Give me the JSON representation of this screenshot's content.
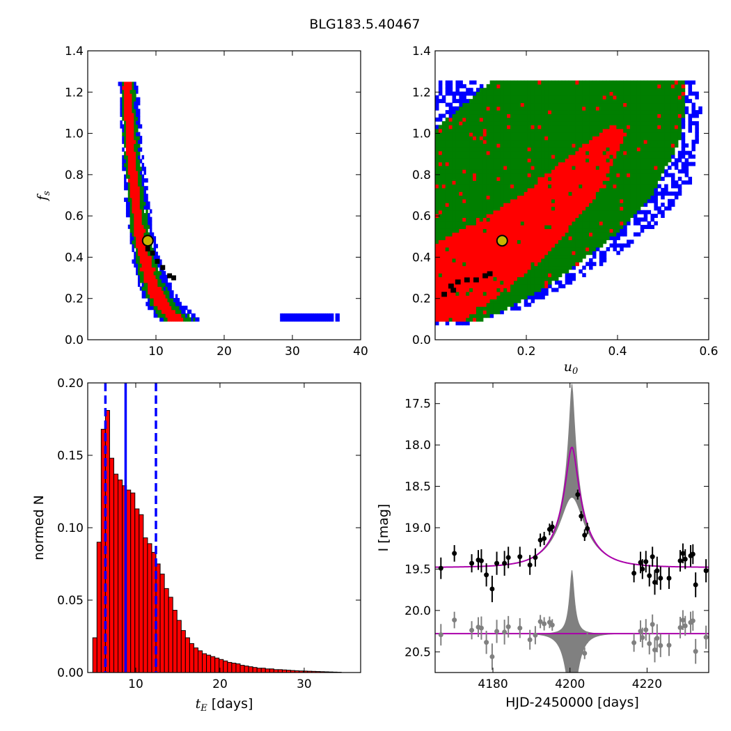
{
  "title": "BLG183.5.40467",
  "colors": {
    "chain_blue": "#0000ff",
    "chain_green": "#007f00",
    "chain_red": "#ff0000",
    "chain_black": "#000000",
    "best_marker_fill": "#c8b400",
    "hist_fill": "#ff0000",
    "vline_blue": "#0000ff",
    "model_magenta": "#aa00aa",
    "band_gray": "#808080",
    "data_black": "#000000",
    "resid_gray": "#808080"
  },
  "chart_data": [
    {
      "id": "panel_te_fs",
      "type": "heatmap",
      "title": "",
      "xlabel": "",
      "ylabel_symbol": "f",
      "ylabel_sub": "s",
      "xlim": [
        0,
        40
      ],
      "ylim": [
        0,
        1.4
      ],
      "xticks": [
        "10",
        "20",
        "30",
        "40"
      ],
      "yticks": [
        "0.0",
        "0.2",
        "0.4",
        "0.6",
        "0.8",
        "1.0",
        "1.2",
        "1.4"
      ],
      "levels": [
        "blue",
        "green",
        "red",
        "black"
      ],
      "region_model": "tE = c / fs^p",
      "curve_c": 6.02,
      "curve_p": 0.33,
      "fs_range": [
        0.09,
        1.25
      ],
      "band_half_width_log": {
        "blue": 0.24,
        "green": 0.17,
        "red": 0.1
      },
      "black_core": [
        [
          8.8,
          0.44
        ],
        [
          9.5,
          0.42
        ],
        [
          10.2,
          0.38
        ],
        [
          11.0,
          0.35
        ],
        [
          12.0,
          0.31
        ],
        [
          12.6,
          0.3
        ]
      ],
      "best_fit": {
        "tE": 8.8,
        "fs": 0.48
      }
    },
    {
      "id": "panel_u0_fs",
      "type": "heatmap",
      "title": "",
      "xlabel_symbol": "u",
      "xlabel_sub": "0",
      "ylabel": "",
      "xlim": [
        0,
        0.6
      ],
      "ylim": [
        0,
        1.4
      ],
      "xticks": [
        "0.2",
        "0.4",
        "0.6"
      ],
      "yticks": [
        "0.0",
        "0.2",
        "0.4",
        "0.6",
        "0.8",
        "1.0",
        "1.2",
        "1.4"
      ],
      "levels": [
        "blue",
        "green",
        "red",
        "black"
      ],
      "region_model": "bounded polygons in (u0, fs)",
      "blue_region": [
        [
          0.0,
          1.25
        ],
        [
          0.57,
          1.25
        ],
        [
          0.585,
          1.1
        ],
        [
          0.56,
          0.75
        ],
        [
          0.48,
          0.55
        ],
        [
          0.36,
          0.35
        ],
        [
          0.22,
          0.18
        ],
        [
          0.09,
          0.08
        ],
        [
          0.0,
          0.08
        ]
      ],
      "green_region": [
        [
          0.0,
          1.02
        ],
        [
          0.12,
          1.25
        ],
        [
          0.55,
          1.25
        ],
        [
          0.54,
          0.98
        ],
        [
          0.47,
          0.68
        ],
        [
          0.38,
          0.48
        ],
        [
          0.24,
          0.25
        ],
        [
          0.1,
          0.09
        ],
        [
          0.0,
          0.09
        ]
      ],
      "red_region": [
        [
          0.0,
          0.47
        ],
        [
          0.1,
          0.58
        ],
        [
          0.2,
          0.72
        ],
        [
          0.3,
          0.9
        ],
        [
          0.39,
          1.05
        ],
        [
          0.42,
          1.0
        ],
        [
          0.36,
          0.72
        ],
        [
          0.25,
          0.42
        ],
        [
          0.13,
          0.2
        ],
        [
          0.06,
          0.09
        ],
        [
          0.0,
          0.09
        ]
      ],
      "black_core": [
        [
          0.02,
          0.22
        ],
        [
          0.035,
          0.26
        ],
        [
          0.05,
          0.28
        ],
        [
          0.07,
          0.29
        ],
        [
          0.09,
          0.29
        ],
        [
          0.11,
          0.31
        ],
        [
          0.12,
          0.32
        ],
        [
          0.04,
          0.24
        ]
      ],
      "best_fit": {
        "u0": 0.147,
        "fs": 0.48
      }
    },
    {
      "id": "panel_te_hist",
      "type": "bar",
      "title": "",
      "xlabel_symbol": "t",
      "xlabel_sub": "E",
      "xlabel_suffix": " [days]",
      "ylabel": "normed N",
      "xlim": [
        4.3,
        36.7
      ],
      "ylim": [
        0,
        0.2
      ],
      "xticks": [
        "10",
        "20",
        "30"
      ],
      "yticks": [
        "0.00",
        "0.05",
        "0.10",
        "0.15",
        "0.20"
      ],
      "bin_start": 4.4,
      "bin_width": 0.5,
      "values": [
        0.0,
        0.024,
        0.09,
        0.168,
        0.181,
        0.148,
        0.137,
        0.133,
        0.129,
        0.126,
        0.124,
        0.113,
        0.109,
        0.093,
        0.089,
        0.083,
        0.075,
        0.068,
        0.058,
        0.052,
        0.043,
        0.036,
        0.029,
        0.024,
        0.02,
        0.017,
        0.015,
        0.013,
        0.012,
        0.011,
        0.01,
        0.009,
        0.008,
        0.007,
        0.0065,
        0.006,
        0.005,
        0.0045,
        0.004,
        0.0035,
        0.003,
        0.003,
        0.0025,
        0.0025,
        0.002,
        0.002,
        0.0018,
        0.0016,
        0.0014,
        0.0012,
        0.0011,
        0.001,
        0.0009,
        0.0008,
        0.0007,
        0.0006,
        0.0005,
        0.0004,
        0.0003,
        0.0002
      ],
      "median": 8.8,
      "lower": 6.4,
      "upper": 12.4
    },
    {
      "id": "panel_lightcurve",
      "type": "line",
      "title": "",
      "xlabel": "HJD-2450000 [days]",
      "ylabel": "I [mag]",
      "xlim": [
        4165,
        4236
      ],
      "ylim": [
        20.75,
        17.25
      ],
      "ylim_note": "inverted magnitude axis",
      "xticks": [
        "4180",
        "4200",
        "4220"
      ],
      "yticks": [
        "17.5",
        "18.0",
        "18.5",
        "19.0",
        "19.5",
        "20.0",
        "20.5"
      ],
      "model": {
        "t0": 4200.5,
        "tE": 8.8,
        "u0": 0.147,
        "fs": 0.48,
        "I_base": 19.48
      },
      "band_peak_mag": 17.25,
      "resid_offset": 20.28,
      "data": [
        [
          4166.5,
          19.49,
          0.13
        ],
        [
          4170.0,
          19.31,
          0.1
        ],
        [
          4174.5,
          19.43,
          0.11
        ],
        [
          4176.2,
          19.39,
          0.12
        ],
        [
          4177.0,
          19.4,
          0.14
        ],
        [
          4178.3,
          19.57,
          0.14
        ],
        [
          4179.8,
          19.74,
          0.16
        ],
        [
          4181.0,
          19.43,
          0.14
        ],
        [
          4183.0,
          19.43,
          0.15
        ],
        [
          4184.0,
          19.36,
          0.13
        ],
        [
          4187.0,
          19.35,
          0.12
        ],
        [
          4189.6,
          19.45,
          0.12
        ],
        [
          4191.0,
          19.36,
          0.11
        ],
        [
          4192.3,
          19.15,
          0.08
        ],
        [
          4193.3,
          19.13,
          0.08
        ],
        [
          4194.7,
          19.02,
          0.07
        ],
        [
          4195.4,
          18.99,
          0.07
        ],
        [
          4202.0,
          18.6,
          0.06
        ],
        [
          4202.9,
          18.86,
          0.06
        ],
        [
          4203.8,
          19.09,
          0.07
        ],
        [
          4204.5,
          19.01,
          0.07
        ],
        [
          4216.6,
          19.55,
          0.11
        ],
        [
          4218.3,
          19.42,
          0.13
        ],
        [
          4218.8,
          19.5,
          0.12
        ],
        [
          4219.7,
          19.41,
          0.13
        ],
        [
          4220.6,
          19.58,
          0.13
        ],
        [
          4221.4,
          19.35,
          0.12
        ],
        [
          4222.0,
          19.66,
          0.15
        ],
        [
          4222.6,
          19.52,
          0.17
        ],
        [
          4223.5,
          19.61,
          0.14
        ],
        [
          4225.7,
          19.61,
          0.13
        ],
        [
          4228.6,
          19.4,
          0.13
        ],
        [
          4229.3,
          19.31,
          0.12
        ],
        [
          4229.9,
          19.38,
          0.12
        ],
        [
          4231.3,
          19.34,
          0.13
        ],
        [
          4231.9,
          19.32,
          0.12
        ],
        [
          4232.6,
          19.69,
          0.15
        ],
        [
          4235.3,
          19.52,
          0.14
        ]
      ]
    }
  ]
}
